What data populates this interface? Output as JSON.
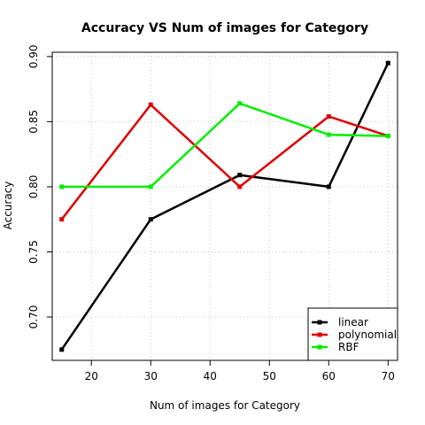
{
  "chart_data": {
    "type": "line",
    "title": "Accuracy VS Num of images for Category",
    "xlabel": "Num of images for Category",
    "ylabel": "Accuracy",
    "xlim": [
      13.4,
      71.6
    ],
    "ylim": [
      0.6667,
      0.9033
    ],
    "xticks": [
      20,
      30,
      40,
      50,
      60,
      70
    ],
    "yticks": [
      0.7,
      0.75,
      0.8,
      0.85,
      0.9
    ],
    "xtick_labels": [
      "20",
      "30",
      "40",
      "50",
      "60",
      "70"
    ],
    "ytick_labels": [
      "0.70",
      "0.75",
      "0.80",
      "0.85",
      "0.90"
    ],
    "grid": true,
    "legend_position": "bottom-right",
    "x": [
      15,
      30,
      45,
      60,
      70
    ],
    "series": [
      {
        "name": "linear",
        "color": "#000000",
        "values": [
          0.675,
          0.775,
          0.809,
          0.8,
          0.895
        ]
      },
      {
        "name": "polynomial",
        "color": "#dd0000",
        "values": [
          0.775,
          0.863,
          0.8,
          0.854,
          0.839
        ]
      },
      {
        "name": "RBF",
        "color": "#00ee00",
        "values": [
          0.8,
          0.8,
          0.864,
          0.84,
          0.839
        ]
      }
    ]
  }
}
